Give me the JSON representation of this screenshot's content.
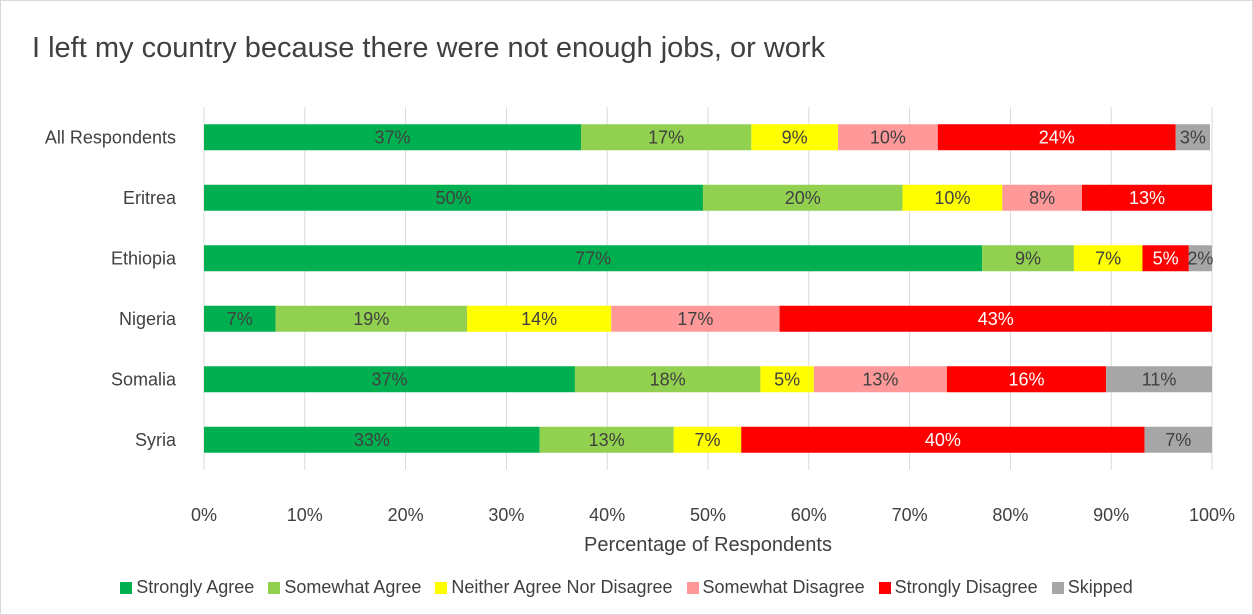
{
  "chart_data": {
    "type": "bar",
    "orientation": "horizontal",
    "stacked": "percent",
    "title": "I left my country because there were not enough jobs, or work",
    "xlabel": "Percentage of Respondents",
    "ylabel": "",
    "xlim": [
      0,
      100
    ],
    "xticks": [
      "0%",
      "10%",
      "20%",
      "30%",
      "40%",
      "50%",
      "60%",
      "70%",
      "80%",
      "90%",
      "100%"
    ],
    "grid": true,
    "legend_position": "bottom",
    "categories": [
      "All Respondents",
      "Eritrea",
      "Ethiopia",
      "Nigeria",
      "Somalia",
      "Syria"
    ],
    "series": [
      {
        "name": "Strongly Agree",
        "color": "#00b050",
        "label_color": "#404040",
        "values": [
          37.4,
          49.5,
          77.2,
          7.1,
          36.8,
          33.3
        ],
        "labels": [
          "37%",
          "50%",
          "77%",
          "7%",
          "37%",
          "33%"
        ]
      },
      {
        "name": "Somewhat Agree",
        "color": "#92d050",
        "label_color": "#404040",
        "values": [
          16.9,
          19.8,
          9.1,
          19.0,
          18.4,
          13.3
        ],
        "labels": [
          "17%",
          "20%",
          "9%",
          "19%",
          "18%",
          "13%"
        ]
      },
      {
        "name": "Neither Agree Nor Disagree",
        "color": "#ffff00",
        "label_color": "#404040",
        "values": [
          8.6,
          9.9,
          6.8,
          14.3,
          5.3,
          6.7
        ],
        "labels": [
          "9%",
          "10%",
          "7%",
          "14%",
          "5%",
          "7%"
        ]
      },
      {
        "name": "Somewhat Disagree",
        "color": "#ff9999",
        "label_color": "#404040",
        "values": [
          9.9,
          7.9,
          0,
          16.7,
          13.2,
          0
        ],
        "labels": [
          "10%",
          "8%",
          "",
          "17%",
          "13%",
          ""
        ]
      },
      {
        "name": "Strongly Disagree",
        "color": "#ff0000",
        "label_color": "#ffffff",
        "values": [
          23.6,
          12.9,
          4.6,
          42.9,
          15.8,
          40.0
        ],
        "labels": [
          "24%",
          "13%",
          "5%",
          "43%",
          "16%",
          "40%"
        ]
      },
      {
        "name": "Skipped",
        "color": "#a6a6a6",
        "label_color": "#404040",
        "values": [
          3.4,
          0,
          2.3,
          0,
          10.5,
          6.7
        ],
        "labels": [
          "3%",
          "",
          "2%",
          "",
          "11%",
          "7%"
        ]
      }
    ]
  }
}
